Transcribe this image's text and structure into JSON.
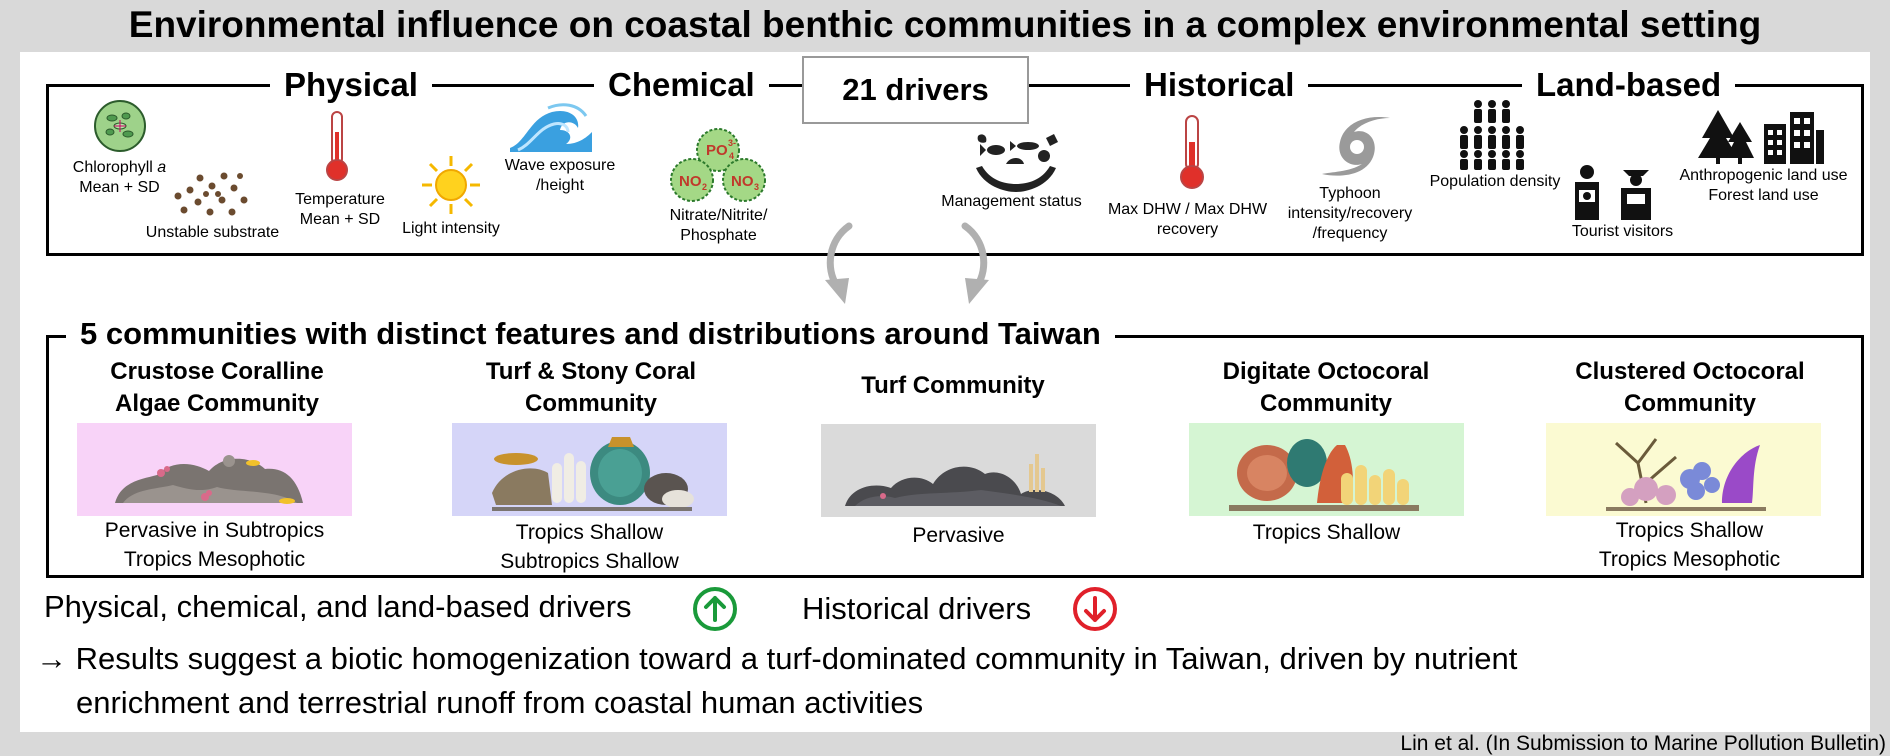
{
  "title": "Environmental influence on coastal benthic communities in a complex environmental setting",
  "drivers_box": {
    "center_label": "21 drivers",
    "categories": [
      "Physical",
      "Chemical",
      "Historical",
      "Land-based"
    ],
    "labels": {
      "chlorophyll_name": "Chlorophyll",
      "chlorophyll_italic": "a",
      "chlorophyll_stat": "Mean + SD",
      "unstable_substrate": "Unstable substrate",
      "temperature": "Temperature",
      "temperature_stat": "Mean + SD",
      "light_intensity": "Light intensity",
      "wave_1": "Wave exposure",
      "wave_2": "/height",
      "nutrient_1": "Nitrate/Nitrite/",
      "nutrient_2": "Phosphate",
      "management_status": "Management status",
      "dhw_1": "Max DHW / Max DHW",
      "dhw_2": "recovery",
      "typhoon_1": "Typhoon",
      "typhoon_2": "intensity/recovery",
      "typhoon_3": "/frequency",
      "population_density": "Population density",
      "tourist_visitors": "Tourist visitors",
      "land_use_1": "Anthropogenic land use",
      "land_use_2": "Forest land use"
    },
    "molecules": {
      "po4": "PO",
      "no2": "NO",
      "no3": "NO"
    }
  },
  "communities_box": {
    "title": "5 communities with distinct features and distributions around Taiwan",
    "communities": [
      {
        "name_1": "Crustose Coralline",
        "name_2": "Algae Community",
        "dist_1": "Pervasive in Subtropics",
        "dist_2": "Tropics Mesophotic",
        "bg": "#f8d3f8"
      },
      {
        "name_1": "Turf & Stony Coral",
        "name_2": "Community",
        "dist_1": "Tropics Shallow",
        "dist_2": "Subtropics Shallow",
        "bg": "#d5d5f8"
      },
      {
        "name_1": "Turf Community",
        "name_2": "",
        "dist_1": "Pervasive",
        "dist_2": "",
        "bg": "#dadada"
      },
      {
        "name_1": "Digitate Octocoral",
        "name_2": "Community",
        "dist_1": "Tropics Shallow",
        "dist_2": "",
        "bg": "#d5f5d3"
      },
      {
        "name_1": "Clustered Octocoral",
        "name_2": "Community",
        "dist_1": "Tropics Shallow",
        "dist_2": "Tropics Mesophotic",
        "bg": "#fbfad2"
      }
    ]
  },
  "effects": {
    "positive_label": "Physical, chemical, and land-based drivers",
    "positive_icon": "up-arrow-circle-icon",
    "positive_color": "#1a9a3a",
    "negative_label": "Historical drivers",
    "negative_icon": "down-arrow-circle-icon",
    "negative_color": "#e0202a"
  },
  "conclusion": {
    "arrow": "→",
    "line_1": "Results suggest a biotic homogenization toward a turf-dominated community in Taiwan, driven by nutrient",
    "line_2": "enrichment and terrestrial runoff from coastal human activities"
  },
  "citation": "Lin et al. (In Submission to Marine Pollution Bulletin)"
}
